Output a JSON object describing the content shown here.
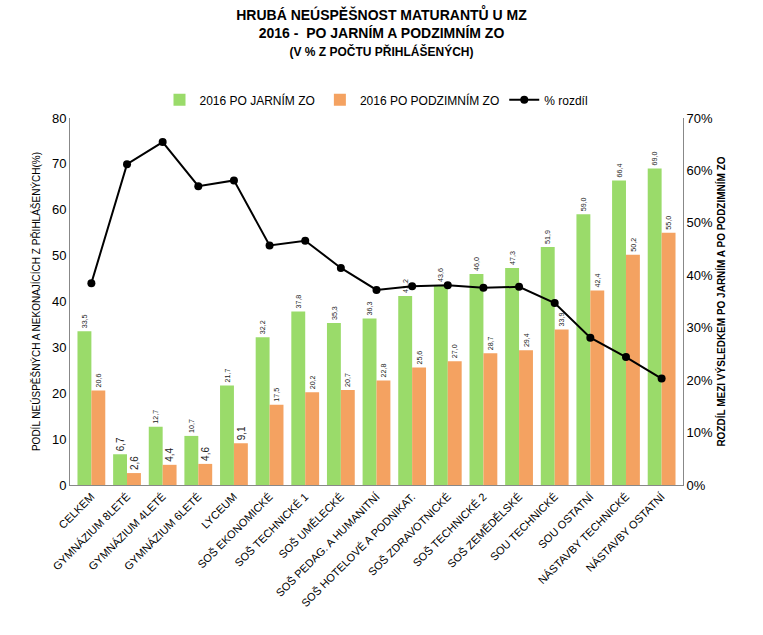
{
  "chart_data": {
    "type": "bar",
    "title": "HRUBÁ NEÚSPĚŠNOST MATURANTŮ U MZ\n2016 -  PO JARNÍM A PODZIMNÍM ZO",
    "subtitle": "(V % Z POČTU PŘIHLÁŠENÝCH)",
    "y_label": "PODÍL NEÚSPĚŠNÝCH A NEKONAJÍCÍCH Z PŘIHLÁŠENÝCH(%)",
    "y2_label": "ROZDÍL MEZI VÝSLEDKEM PO JARNÍM A PO PODZIMNÍM ZO",
    "categories": [
      "CELKEM",
      "GYMNÁZIUM 8LETÉ",
      "GYMNÁZIUM 4LETÉ",
      "GYMNÁZIUM 6LETÉ",
      "LYCEUM",
      "SOŠ EKONOMICKÉ",
      "SOŠ TECHNICKÉ 1",
      "SOŠ UMĚLECKÉ",
      "SOŠ PEDAG. A HUMANITNÍ",
      "SOŠ HOTELOVÉ A PODNIKAT.",
      "SOŠ ZDRAVOTNICKÉ",
      "SOŠ TECHNICKÉ 2",
      "SOŠ ZEMĚDĚLSKÉ",
      "SOU TECHNICKÉ",
      "SOU OSTATNÍ",
      "NÁSTAVBY TECHNICKÉ",
      "NÁSTAVBY OSTATNÍ"
    ],
    "series": [
      {
        "name": "2016 PO JARNÍM ZO",
        "type": "bar",
        "color": "#9ADB6A",
        "values": [
          33.5,
          6.7,
          12.7,
          10.7,
          21.7,
          32.2,
          37.8,
          35.3,
          36.3,
          41.2,
          43.6,
          46.0,
          47.3,
          51.9,
          59.0,
          66.4,
          69.0
        ],
        "value_labels": [
          "33,5",
          "6,7",
          "12,7",
          "10,7",
          "21,7",
          "32,2",
          "37,8",
          "35,3",
          "36,3",
          "41,2",
          "43,6",
          "46,0",
          "47,3",
          "51,9",
          "59,0",
          "66,4",
          "69,0"
        ]
      },
      {
        "name": "2016 PO PODZIMNÍM ZO",
        "type": "bar",
        "color": "#F4A261",
        "values": [
          20.6,
          2.6,
          4.4,
          4.6,
          9.1,
          17.5,
          20.2,
          20.7,
          22.8,
          25.6,
          27.0,
          28.7,
          29.4,
          33.9,
          42.4,
          50.2,
          55.0
        ],
        "value_labels": [
          "20,6",
          "2,6",
          "4,4",
          "4,6",
          "9,1",
          "17,5",
          "20,2",
          "20,7",
          "22,8",
          "25,6",
          "27,0",
          "28,7",
          "29,4",
          "33,9",
          "42,4",
          "50,2",
          "55,0"
        ]
      },
      {
        "name": "% rozdíl",
        "type": "line",
        "axis": "y2",
        "color": "#000000",
        "marker": "circle",
        "line_style": "solid",
        "values": [
          38.5,
          61.2,
          65.4,
          57.0,
          58.1,
          45.7,
          46.6,
          41.4,
          37.2,
          37.9,
          38.1,
          37.6,
          37.8,
          34.7,
          28.1,
          24.4,
          20.3
        ]
      }
    ],
    "ylim": [
      0,
      80
    ],
    "yticks": [
      0,
      10,
      20,
      30,
      40,
      50,
      60,
      70,
      80
    ],
    "y2lim": [
      0,
      70
    ],
    "y2ticks": [
      {
        "value": 0,
        "label": "0%"
      },
      {
        "value": 10,
        "label": "10%"
      },
      {
        "value": 20,
        "label": "20%"
      },
      {
        "value": 30,
        "label": "30%"
      },
      {
        "value": 40,
        "label": "40%"
      },
      {
        "value": 50,
        "label": "50%"
      },
      {
        "value": 60,
        "label": "60%"
      },
      {
        "value": 70,
        "label": "70%"
      }
    ],
    "grid": false,
    "legend": "top",
    "data_labels": true
  }
}
